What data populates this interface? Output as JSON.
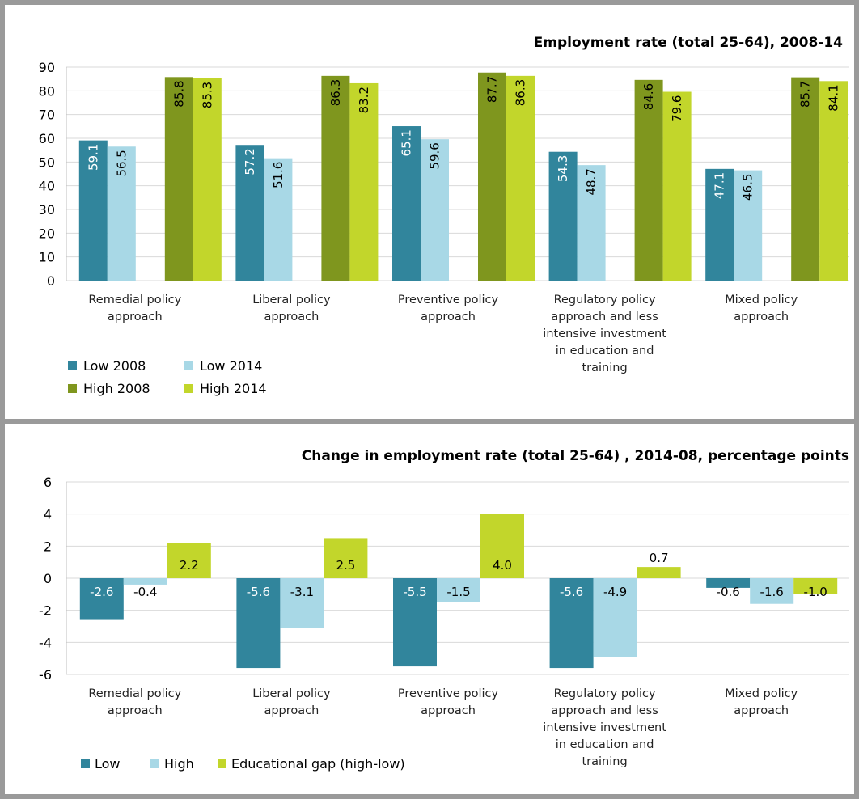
{
  "charts": [
    {
      "type": "bar",
      "title": "Employment rate  (total 25-64), 2008-14",
      "categories": [
        [
          "Remedial policy",
          "approach"
        ],
        [
          "Liberal policy",
          "approach"
        ],
        [
          "Preventive policy",
          "approach"
        ],
        [
          "Regulatory policy",
          "approach and less",
          "intensive investment",
          "in education and",
          "training"
        ],
        [
          "Mixed policy",
          "approach"
        ]
      ],
      "ylim": [
        0,
        90
      ],
      "yticks": [
        "0",
        "10",
        "20",
        "30",
        "40",
        "50",
        "60",
        "70",
        "80",
        "90"
      ],
      "series": [
        {
          "name": "Low 2008",
          "color": "#31859c",
          "values": [
            59.1,
            57.2,
            65.1,
            54.3,
            47.1
          ],
          "labels": [
            "59.1",
            "57.2",
            "65.1",
            "54.3",
            "47.1"
          ]
        },
        {
          "name": "Low 2014",
          "color": "#a8d8e6",
          "values": [
            56.5,
            51.6,
            59.6,
            48.7,
            46.5
          ],
          "labels": [
            "56.5",
            "51.6",
            "59.6",
            "48.7",
            "46.5"
          ]
        },
        {
          "name": "High 2008",
          "color": "#7f961e",
          "values": [
            85.8,
            86.3,
            87.7,
            84.6,
            85.7
          ],
          "labels": [
            "85.8",
            "86.3",
            "87.7",
            "84.6",
            "85.7"
          ]
        },
        {
          "name": "High 2014",
          "color": "#c2d62b",
          "values": [
            85.3,
            83.2,
            86.3,
            79.6,
            84.1
          ],
          "labels": [
            "85.3",
            "83.2",
            "86.3",
            "79.6",
            "84.1"
          ]
        }
      ],
      "grid": true,
      "legend_placement": "bottom-left"
    },
    {
      "type": "bar",
      "title": "Change in employment rate (total 25-64) , 2014-08, percentage points",
      "categories": [
        [
          "Remedial policy",
          "approach"
        ],
        [
          "Liberal policy",
          "approach"
        ],
        [
          "Preventive policy",
          "approach"
        ],
        [
          "Regulatory policy",
          "approach and less",
          "intensive investment",
          "in education and",
          "training"
        ],
        [
          "Mixed policy",
          "approach"
        ]
      ],
      "ylim": [
        -6,
        6
      ],
      "yticks": [
        "-6",
        "-4",
        "-2",
        "0",
        "2",
        "4",
        "6"
      ],
      "series": [
        {
          "name": "Low",
          "color": "#31859c",
          "values": [
            -2.6,
            -5.6,
            -5.5,
            -5.6,
            -0.6
          ],
          "labels": [
            "-2.6",
            "-5.6",
            "-5.5",
            "-5.6",
            "-0.6"
          ]
        },
        {
          "name": "High",
          "color": "#a8d8e6",
          "values": [
            -0.4,
            -3.1,
            -1.5,
            -4.9,
            -1.6
          ],
          "labels": [
            "-0.4",
            "-3.1",
            "-1.5",
            "-4.9",
            "-1.6"
          ]
        },
        {
          "name": "Educational gap (high-low)",
          "color": "#c2d62b",
          "values": [
            2.2,
            2.5,
            4.0,
            0.7,
            -1.0
          ],
          "labels": [
            "2.2",
            "2.5",
            "4.0",
            "0.7",
            "-1.0"
          ]
        }
      ],
      "grid": true,
      "legend_placement": "bottom-left"
    }
  ]
}
